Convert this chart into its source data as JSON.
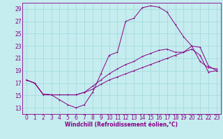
{
  "xlabel": "Windchill (Refroidissement éolien,°C)",
  "background_color": "#c5ecee",
  "grid_color": "#9dd8dc",
  "line_color": "#880088",
  "xlim": [
    -0.5,
    23.5
  ],
  "ylim": [
    12,
    30
  ],
  "xticks": [
    0,
    1,
    2,
    3,
    4,
    5,
    6,
    7,
    8,
    9,
    10,
    11,
    12,
    13,
    14,
    15,
    16,
    17,
    18,
    19,
    20,
    21,
    22,
    23
  ],
  "yticks": [
    13,
    15,
    17,
    19,
    21,
    23,
    25,
    27,
    29
  ],
  "curve1_x": [
    0,
    1,
    2,
    3,
    4,
    5,
    6,
    7,
    8,
    9,
    10,
    11,
    12,
    13,
    14,
    15,
    16,
    17,
    18,
    19,
    20,
    21,
    22,
    23
  ],
  "curve1_y": [
    17.5,
    17.0,
    15.2,
    15.1,
    14.3,
    13.5,
    13.0,
    13.5,
    15.5,
    18.5,
    21.5,
    22.0,
    27.0,
    27.5,
    29.2,
    29.5,
    29.3,
    28.5,
    26.5,
    24.5,
    23.0,
    20.5,
    19.5,
    19.3
  ],
  "curve2_x": [
    0,
    1,
    2,
    3,
    4,
    5,
    6,
    7,
    8,
    9,
    10,
    11,
    12,
    13,
    14,
    15,
    16,
    17,
    18,
    19,
    20,
    21,
    22,
    23
  ],
  "curve2_y": [
    17.5,
    17.0,
    15.2,
    15.1,
    15.1,
    15.1,
    15.1,
    15.5,
    16.5,
    17.5,
    18.5,
    19.3,
    20.0,
    20.5,
    21.3,
    21.8,
    22.3,
    22.5,
    22.0,
    22.0,
    23.0,
    22.8,
    19.8,
    19.0
  ],
  "curve3_x": [
    0,
    1,
    2,
    3,
    4,
    5,
    6,
    7,
    8,
    9,
    10,
    11,
    12,
    13,
    14,
    15,
    16,
    17,
    18,
    19,
    20,
    21,
    22,
    23
  ],
  "curve3_y": [
    17.5,
    17.0,
    15.2,
    15.1,
    15.1,
    15.1,
    15.1,
    15.5,
    16.0,
    16.8,
    17.5,
    18.0,
    18.5,
    19.0,
    19.5,
    20.0,
    20.5,
    21.0,
    21.5,
    22.0,
    22.5,
    21.5,
    18.8,
    19.0
  ],
  "xlabel_fontsize": 5.5,
  "tick_fontsize": 5.5,
  "marker_size": 2.0,
  "linewidth": 0.7
}
